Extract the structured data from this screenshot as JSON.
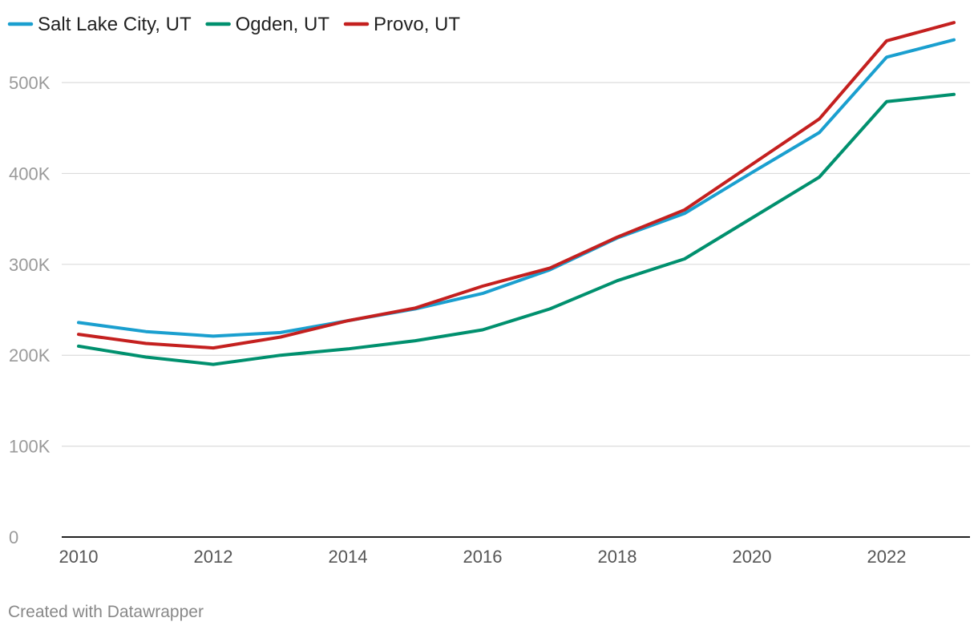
{
  "chart_data": {
    "type": "line",
    "x": [
      2010,
      2011,
      2012,
      2013,
      2014,
      2015,
      2016,
      2017,
      2018,
      2019,
      2020,
      2021,
      2022,
      2023
    ],
    "series": [
      {
        "name": "Salt Lake City, UT",
        "color": "#1a9fcf",
        "values": [
          236000,
          226000,
          221000,
          225000,
          238000,
          251000,
          268000,
          294000,
          329000,
          356000,
          401000,
          445000,
          528000,
          547000
        ]
      },
      {
        "name": "Ogden, UT",
        "color": "#00906e",
        "values": [
          210000,
          198000,
          190000,
          200000,
          207000,
          216000,
          228000,
          251000,
          282000,
          306000,
          351000,
          396000,
          479000,
          487000
        ]
      },
      {
        "name": "Provo, UT",
        "color": "#c4201f",
        "values": [
          223000,
          213000,
          208000,
          220000,
          238000,
          252000,
          276000,
          296000,
          330000,
          360000,
          410000,
          460000,
          546000,
          566000
        ]
      }
    ],
    "yticks": [
      0,
      100000,
      200000,
      300000,
      400000,
      500000
    ],
    "ytick_labels": [
      "0",
      "100K",
      "200K",
      "300K",
      "400K",
      "500K"
    ],
    "xticks": [
      2010,
      2012,
      2014,
      2016,
      2018,
      2020,
      2022
    ],
    "xtick_labels": [
      "2010",
      "2012",
      "2014",
      "2016",
      "2018",
      "2020",
      "2022"
    ],
    "xlim": [
      2010,
      2023
    ],
    "ylim": [
      0,
      560000
    ],
    "grid": true,
    "legend_position": "top-left",
    "title": "",
    "xlabel": "",
    "ylabel": ""
  },
  "footer": {
    "credit": "Created with Datawrapper"
  }
}
